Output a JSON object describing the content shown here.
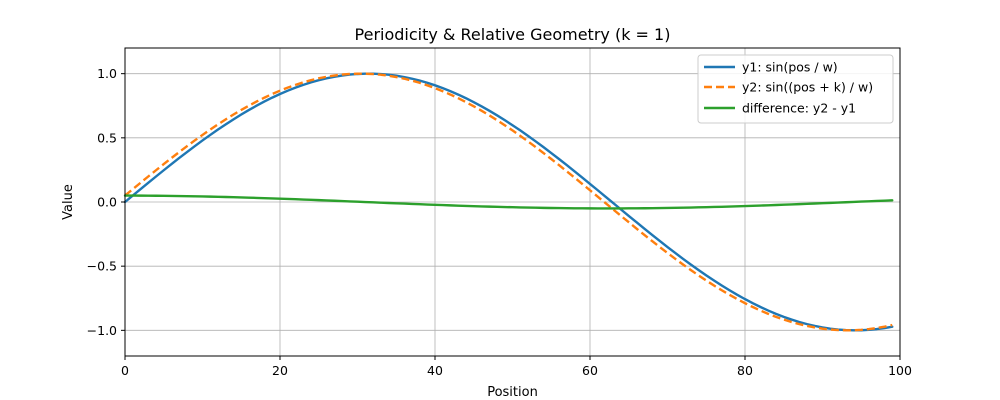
{
  "chart_data": {
    "type": "line",
    "title": "Periodicity & Relative Geometry (k = 1)",
    "xlabel": "Position",
    "ylabel": "Value",
    "xlim": [
      0,
      100
    ],
    "ylim": [
      -1.2,
      1.2
    ],
    "grid": true,
    "legend_position": "top-right",
    "x_ticks": [
      0,
      20,
      40,
      60,
      80,
      100
    ],
    "x_tick_labels": [
      "0",
      "20",
      "40",
      "60",
      "80",
      "100"
    ],
    "y_ticks": [
      -1.0,
      -0.5,
      0.0,
      0.5,
      1.0
    ],
    "y_tick_labels": [
      "−1.0",
      "−0.5",
      "0.0",
      "0.5",
      "1.0"
    ],
    "x_start": 0,
    "x_end": 99,
    "x_step": 1,
    "series": [
      {
        "name": "y1: sin(pos / w)",
        "formula": "sin(x / 20)",
        "period_w": 20,
        "offset_k": 0,
        "color": "#1f77b4",
        "style": "solid"
      },
      {
        "name": "y2: sin((pos + k) / w)",
        "formula": "sin((x + 1) / 20)",
        "period_w": 20,
        "offset_k": 1,
        "color": "#ff7f0e",
        "style": "dashed"
      },
      {
        "name": "difference: y2 - y1",
        "formula": "sin((x + 1) / 20) - sin(x / 20)",
        "period_w": 20,
        "offset_k": 1,
        "color": "#2ca02c",
        "style": "solid"
      }
    ]
  }
}
